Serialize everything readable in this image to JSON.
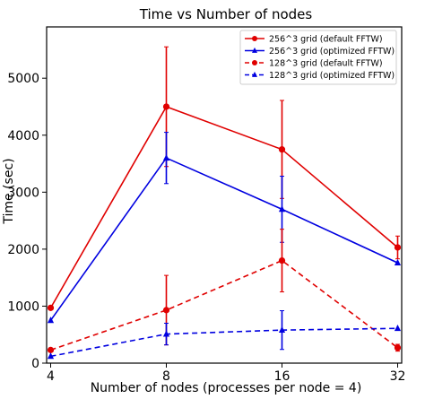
{
  "chart_data": {
    "type": "line",
    "title": "Time vs Number of nodes",
    "xlabel": "Number of nodes (processes per node = 4)",
    "ylabel": "Time (sec)",
    "x": [
      4,
      8,
      16,
      32
    ],
    "x_tick_labels": [
      "4",
      "8",
      "16",
      "32"
    ],
    "x_scale": "log2",
    "ylim": [
      0,
      5900
    ],
    "y_ticks": [
      0,
      1000,
      2000,
      3000,
      4000,
      5000
    ],
    "legend_position": "top-right",
    "grid": false,
    "series": [
      {
        "name": "256^3 grid (default FFTW)",
        "color": "#e00000",
        "linestyle": "solid",
        "marker": "circle",
        "values": [
          970,
          4500,
          3750,
          2030
        ],
        "errors": [
          0,
          1050,
          860,
          200
        ]
      },
      {
        "name": "256^3 grid (optimized FFTW)",
        "color": "#0000e0",
        "linestyle": "solid",
        "marker": "triangle",
        "values": [
          750,
          3600,
          2700,
          1760
        ],
        "errors": [
          0,
          450,
          580,
          0
        ]
      },
      {
        "name": "128^3 grid (default FFTW)",
        "color": "#e00000",
        "linestyle": "dashed",
        "marker": "circle",
        "values": [
          230,
          930,
          1800,
          270
        ],
        "errors": [
          0,
          610,
          550,
          60
        ]
      },
      {
        "name": "128^3 grid (optimized FFTW)",
        "color": "#0000e0",
        "linestyle": "dashed",
        "marker": "triangle",
        "values": [
          120,
          510,
          580,
          610
        ],
        "errors": [
          0,
          190,
          340,
          0
        ]
      }
    ]
  }
}
